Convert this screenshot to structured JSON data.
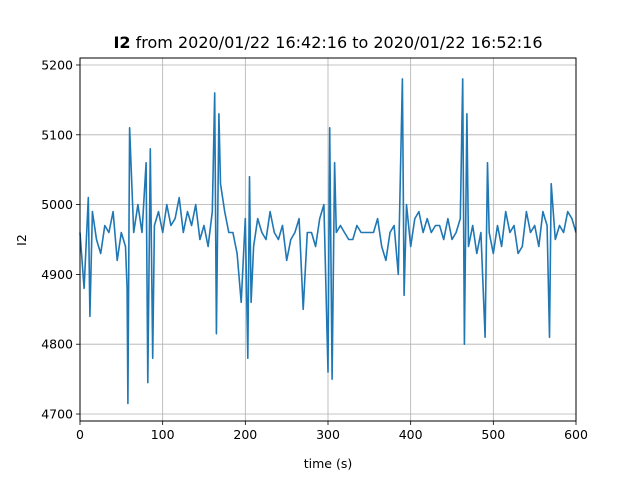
{
  "chart_data": {
    "type": "line",
    "title_bold": "I2",
    "title_rest": " from 2020/01/22 16:42:16 to 2020/01/22 16:52:16",
    "xlabel": "time (s)",
    "ylabel": "I2",
    "xlim": [
      0,
      600
    ],
    "ylim": [
      4690,
      5210
    ],
    "xticks": [
      0,
      100,
      200,
      300,
      400,
      500,
      600
    ],
    "yticks": [
      4700,
      4800,
      4900,
      5000,
      5100,
      5200
    ],
    "grid": true,
    "legend": "none",
    "line_color": "#1f77b4",
    "series": [
      {
        "x": [
          0,
          5,
          10,
          12,
          15,
          20,
          25,
          30,
          35,
          40,
          45,
          50,
          55,
          57,
          58,
          60,
          65,
          70,
          75,
          80,
          82,
          85,
          88,
          90,
          95,
          100,
          105,
          110,
          115,
          120,
          125,
          130,
          135,
          140,
          145,
          150,
          155,
          160,
          163,
          165,
          168,
          170,
          175,
          180,
          185,
          190,
          195,
          200,
          203,
          205,
          207,
          210,
          215,
          220,
          225,
          230,
          235,
          240,
          245,
          250,
          255,
          260,
          265,
          270,
          275,
          280,
          285,
          290,
          295,
          300,
          302,
          305,
          308,
          310,
          315,
          320,
          325,
          330,
          335,
          340,
          345,
          350,
          355,
          360,
          365,
          370,
          375,
          380,
          385,
          390,
          392,
          395,
          400,
          405,
          410,
          415,
          420,
          425,
          430,
          435,
          440,
          445,
          450,
          455,
          460,
          463,
          465,
          468,
          470,
          475,
          480,
          485,
          490,
          493,
          495,
          500,
          505,
          510,
          515,
          520,
          525,
          530,
          535,
          540,
          545,
          550,
          555,
          560,
          565,
          568,
          570,
          575,
          580,
          585,
          590,
          595,
          600
        ],
        "y": [
          4960,
          4880,
          5010,
          4840,
          4990,
          4950,
          4930,
          4970,
          4960,
          4990,
          4920,
          4960,
          4940,
          4880,
          4715,
          5110,
          4960,
          5000,
          4960,
          5060,
          4745,
          5080,
          4780,
          4970,
          4990,
          4960,
          5000,
          4970,
          4980,
          5010,
          4960,
          4990,
          4970,
          5000,
          4950,
          4970,
          4940,
          4990,
          5160,
          4815,
          5130,
          5030,
          4990,
          4960,
          4960,
          4930,
          4860,
          4980,
          4780,
          5040,
          4860,
          4940,
          4980,
          4960,
          4950,
          4990,
          4960,
          4950,
          4970,
          4920,
          4950,
          4960,
          4980,
          4850,
          4960,
          4960,
          4940,
          4980,
          5000,
          4760,
          5110,
          4750,
          5060,
          4960,
          4970,
          4960,
          4950,
          4950,
          4970,
          4960,
          4960,
          4960,
          4960,
          4980,
          4940,
          4920,
          4960,
          4970,
          4900,
          5180,
          4870,
          5000,
          4940,
          4980,
          4990,
          4960,
          4980,
          4960,
          4970,
          4970,
          4950,
          4980,
          4950,
          4960,
          4980,
          5180,
          4800,
          5130,
          4940,
          4970,
          4930,
          4960,
          4810,
          5060,
          4960,
          4930,
          4970,
          4940,
          4990,
          4960,
          4970,
          4930,
          4940,
          4990,
          4960,
          4970,
          4940,
          4990,
          4970,
          4810,
          5030,
          4950,
          4970,
          4960,
          4990,
          4980,
          4960
        ]
      }
    ]
  }
}
